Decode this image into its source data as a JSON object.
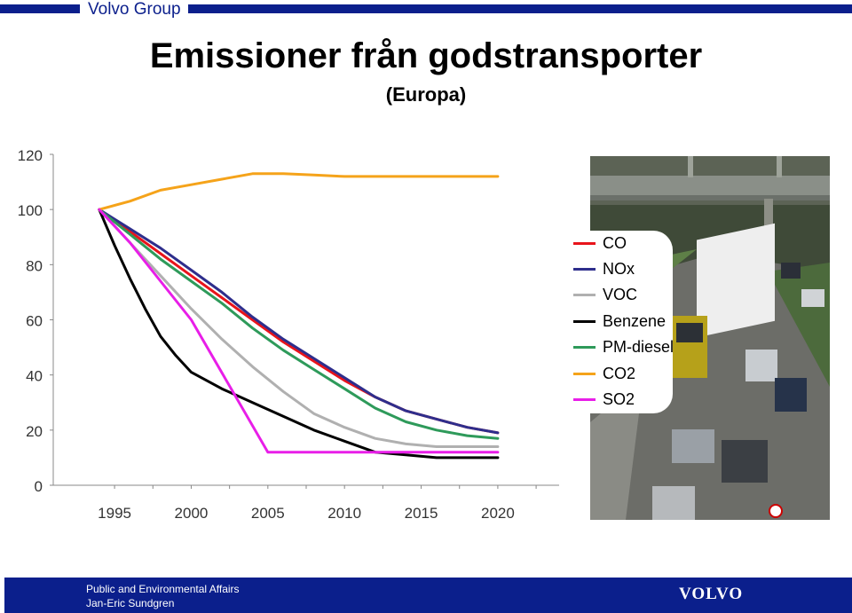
{
  "header": {
    "brand": "Volvo Group"
  },
  "slide": {
    "title": "Emissioner från godstransporter",
    "subtitle": "(Europa)"
  },
  "chart_data": {
    "type": "line",
    "title": "Emissioner från godstransporter",
    "subtitle": "(Europa)",
    "xlabel": "",
    "ylabel": "",
    "x_ticks": [
      1995,
      2000,
      2005,
      2010,
      2015,
      2020
    ],
    "xlim": [
      1991,
      2024
    ],
    "ylim": [
      0,
      120
    ],
    "y_ticks": [
      0,
      20,
      40,
      60,
      80,
      100,
      120
    ],
    "grid": false,
    "legend_position": "right",
    "series": [
      {
        "name": "CO",
        "color": "#e8141b",
        "x": [
          1994,
          1996,
          1998,
          2000,
          2002,
          2004,
          2006,
          2008,
          2010,
          2012,
          2014,
          2016,
          2018,
          2020
        ],
        "y": [
          100,
          92,
          84,
          76,
          68,
          60,
          52,
          45,
          38,
          32,
          27,
          24,
          21,
          19
        ]
      },
      {
        "name": "NOx",
        "color": "#2e2e8c",
        "x": [
          1994,
          1996,
          1998,
          2000,
          2002,
          2004,
          2006,
          2008,
          2010,
          2012,
          2014,
          2016,
          2018,
          2020
        ],
        "y": [
          100,
          93,
          86,
          78,
          70,
          61,
          53,
          46,
          39,
          32,
          27,
          24,
          21,
          19
        ]
      },
      {
        "name": "VOC",
        "color": "#b0b0b0",
        "x": [
          1994,
          1996,
          1998,
          2000,
          2002,
          2004,
          2006,
          2008,
          2010,
          2012,
          2014,
          2016,
          2018,
          2020
        ],
        "y": [
          100,
          88,
          76,
          64,
          53,
          43,
          34,
          26,
          21,
          17,
          15,
          14,
          14,
          14
        ]
      },
      {
        "name": "Benzene",
        "color": "#000000",
        "x": [
          1994,
          1995,
          1996,
          1997,
          1998,
          1999,
          2000,
          2002,
          2004,
          2006,
          2008,
          2010,
          2012,
          2014,
          2016,
          2018,
          2020
        ],
        "y": [
          100,
          87,
          75,
          64,
          54,
          47,
          41,
          35,
          30,
          25,
          20,
          16,
          12,
          11,
          10,
          10,
          10
        ]
      },
      {
        "name": "PM-diesel",
        "color": "#2e9a5a",
        "x": [
          1994,
          1996,
          1998,
          2000,
          2002,
          2004,
          2006,
          2008,
          2010,
          2012,
          2014,
          2016,
          2018,
          2020
        ],
        "y": [
          100,
          91,
          82,
          74,
          66,
          57,
          49,
          42,
          35,
          28,
          23,
          20,
          18,
          17
        ]
      },
      {
        "name": "CO2",
        "color": "#f5a31a",
        "x": [
          1994,
          1996,
          1998,
          2000,
          2002,
          2004,
          2006,
          2008,
          2010,
          2012,
          2014,
          2016,
          2018,
          2020
        ],
        "y": [
          100,
          103,
          107,
          109,
          111,
          113,
          113,
          112.5,
          112,
          112,
          112,
          112,
          112,
          112
        ]
      },
      {
        "name": "SO2",
        "color": "#e81ee8",
        "x": [
          1994,
          1996,
          1998,
          2000,
          2005,
          2010,
          2015,
          2020
        ],
        "y": [
          100,
          88,
          74,
          60,
          12,
          12,
          12,
          12
        ]
      }
    ]
  },
  "footer": {
    "line1": "Public and Environmental Affairs",
    "line2": "Jan-Eric Sundgren",
    "logo": "VOLVO"
  }
}
